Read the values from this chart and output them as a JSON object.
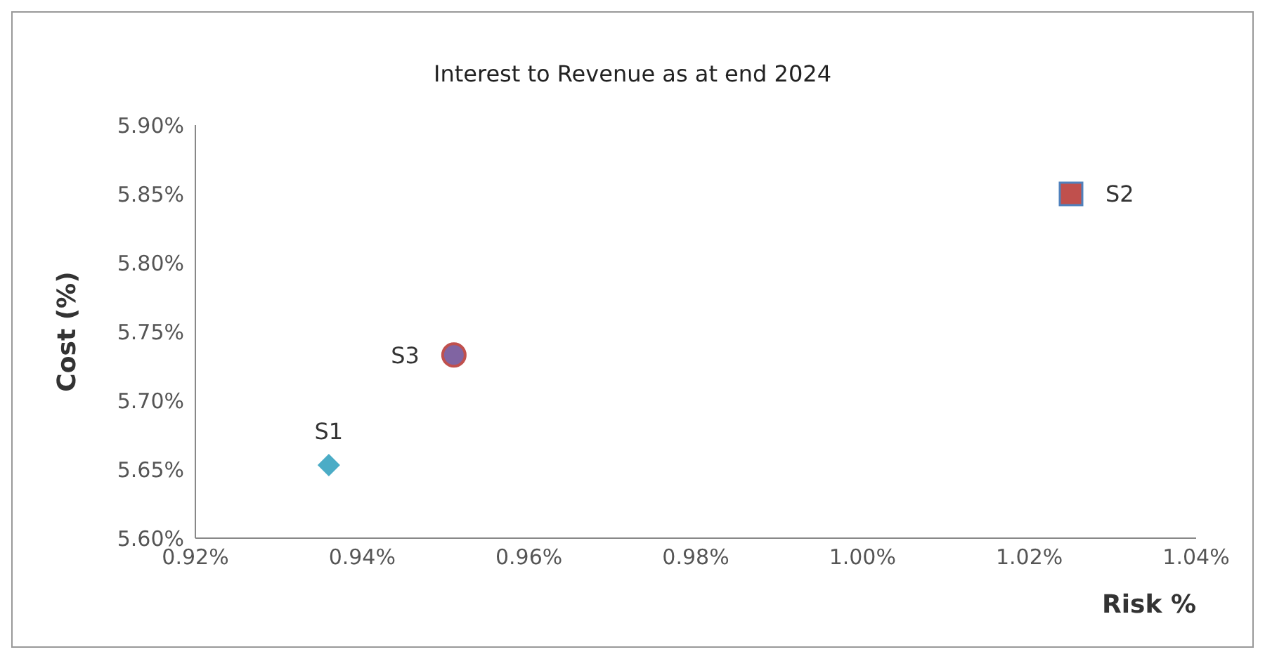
{
  "chart_data": {
    "type": "scatter",
    "title": "Interest to Revenue as at end 2024",
    "xlabel": "Risk %",
    "ylabel": "Cost (%)",
    "xlim": [
      0.92,
      1.04
    ],
    "xticks": [
      {
        "value": 0.92,
        "label": "0.92%"
      },
      {
        "value": 0.94,
        "label": "0.94%"
      },
      {
        "value": 0.96,
        "label": "0.96%"
      },
      {
        "value": 0.98,
        "label": "0.98%"
      },
      {
        "value": 1.0,
        "label": "1.00%"
      },
      {
        "value": 1.02,
        "label": "1.02%"
      },
      {
        "value": 1.04,
        "label": "1.04%"
      }
    ],
    "ylim": [
      5.6,
      5.9
    ],
    "yticks": [
      {
        "value": 5.6,
        "label": "5.60%"
      },
      {
        "value": 5.65,
        "label": "5.65%"
      },
      {
        "value": 5.7,
        "label": "5.70%"
      },
      {
        "value": 5.75,
        "label": "5.75%"
      },
      {
        "value": 5.8,
        "label": "5.80%"
      },
      {
        "value": 5.85,
        "label": "5.85%"
      },
      {
        "value": 5.9,
        "label": "5.90%"
      }
    ],
    "grid": false,
    "legend": false,
    "series": [
      {
        "name": "S1",
        "color": "#4bacc6",
        "marker": "diamond",
        "x": [
          0.936
        ],
        "values": [
          5.653
        ]
      },
      {
        "name": "S2",
        "color": "#c0504d",
        "marker": "square",
        "x": [
          1.025
        ],
        "values": [
          5.85
        ]
      },
      {
        "name": "S3",
        "color": "#8064a2",
        "marker": "circle",
        "x": [
          0.951
        ],
        "values": [
          5.733
        ]
      }
    ]
  }
}
